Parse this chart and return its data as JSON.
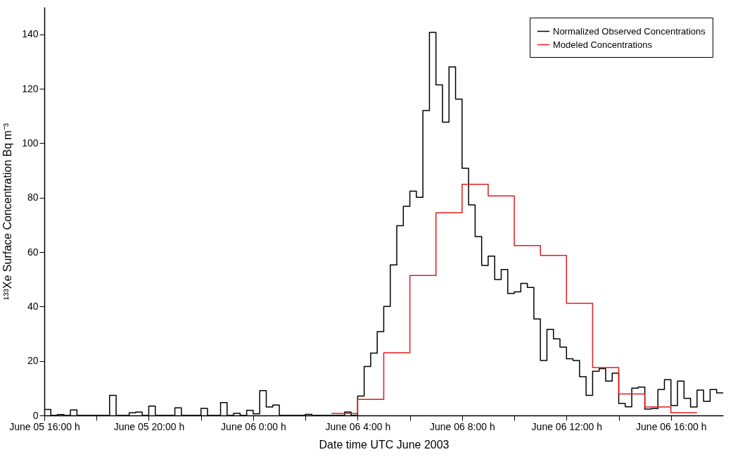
{
  "chart_data": {
    "type": "step",
    "xlabel": "Date time UTC June 2003",
    "ylabel": "¹³³Xe Surface Concentration Bq m⁻³",
    "xlim": [
      "2003-06-05T16:00",
      "2003-06-06T18:00"
    ],
    "ylim": [
      0,
      150
    ],
    "xticks": [
      {
        "value": "2003-06-05T16:00",
        "label": "June 05 16:00 h"
      },
      {
        "value": "2003-06-05T18:00",
        "label": null
      },
      {
        "value": "2003-06-05T20:00",
        "label": "June 05 20:00 h"
      },
      {
        "value": "2003-06-05T22:00",
        "label": null
      },
      {
        "value": "2003-06-06T00:00",
        "label": "June 06 0:00 h"
      },
      {
        "value": "2003-06-06T02:00",
        "label": null
      },
      {
        "value": "2003-06-06T04:00",
        "label": "June 06 4:00 h"
      },
      {
        "value": "2003-06-06T06:00",
        "label": null
      },
      {
        "value": "2003-06-06T08:00",
        "label": "June 06 8:00 h"
      },
      {
        "value": "2003-06-06T10:00",
        "label": null
      },
      {
        "value": "2003-06-06T12:00",
        "label": "June 06 12:00 h"
      },
      {
        "value": "2003-06-06T14:00",
        "label": null
      },
      {
        "value": "2003-06-06T16:00",
        "label": "June 06 16:00 h"
      }
    ],
    "yticks": [
      0,
      20,
      40,
      60,
      80,
      100,
      120,
      140
    ],
    "grid": false,
    "legend": "top right",
    "series": [
      {
        "name": "Normalized Observed Concentrations",
        "color": "#000000",
        "x": [
          "2003-06-05T16:00",
          "2003-06-05T16:15",
          "2003-06-05T16:30",
          "2003-06-05T16:45",
          "2003-06-05T17:00",
          "2003-06-05T17:15",
          "2003-06-05T17:30",
          "2003-06-05T17:45",
          "2003-06-05T18:00",
          "2003-06-05T18:15",
          "2003-06-05T18:30",
          "2003-06-05T18:45",
          "2003-06-05T19:00",
          "2003-06-05T19:15",
          "2003-06-05T19:30",
          "2003-06-05T19:45",
          "2003-06-05T20:00",
          "2003-06-05T20:15",
          "2003-06-05T20:30",
          "2003-06-05T20:45",
          "2003-06-05T21:00",
          "2003-06-05T21:15",
          "2003-06-05T21:30",
          "2003-06-05T21:45",
          "2003-06-05T22:00",
          "2003-06-05T22:15",
          "2003-06-05T22:30",
          "2003-06-05T22:45",
          "2003-06-05T23:00",
          "2003-06-05T23:15",
          "2003-06-05T23:30",
          "2003-06-05T23:45",
          "2003-06-06T00:00",
          "2003-06-06T00:15",
          "2003-06-06T00:30",
          "2003-06-06T00:45",
          "2003-06-06T01:00",
          "2003-06-06T01:15",
          "2003-06-06T01:30",
          "2003-06-06T01:45",
          "2003-06-06T02:00",
          "2003-06-06T02:15",
          "2003-06-06T02:30",
          "2003-06-06T02:45",
          "2003-06-06T03:00",
          "2003-06-06T03:15",
          "2003-06-06T03:30",
          "2003-06-06T03:45",
          "2003-06-06T04:00",
          "2003-06-06T04:15",
          "2003-06-06T04:30",
          "2003-06-06T04:45",
          "2003-06-06T05:00",
          "2003-06-06T05:15",
          "2003-06-06T05:30",
          "2003-06-06T05:45",
          "2003-06-06T06:00",
          "2003-06-06T06:15",
          "2003-06-06T06:30",
          "2003-06-06T06:45",
          "2003-06-06T07:00",
          "2003-06-06T07:15",
          "2003-06-06T07:30",
          "2003-06-06T07:45",
          "2003-06-06T08:00",
          "2003-06-06T08:15",
          "2003-06-06T08:30",
          "2003-06-06T08:45",
          "2003-06-06T09:00",
          "2003-06-06T09:15",
          "2003-06-06T09:30",
          "2003-06-06T09:45",
          "2003-06-06T10:00",
          "2003-06-06T10:15",
          "2003-06-06T10:30",
          "2003-06-06T10:45",
          "2003-06-06T11:00",
          "2003-06-06T11:15",
          "2003-06-06T11:30",
          "2003-06-06T11:45",
          "2003-06-06T12:00",
          "2003-06-06T12:15",
          "2003-06-06T12:30",
          "2003-06-06T12:45",
          "2003-06-06T13:00",
          "2003-06-06T13:15",
          "2003-06-06T13:30",
          "2003-06-06T13:45",
          "2003-06-06T14:00",
          "2003-06-06T14:15",
          "2003-06-06T14:30",
          "2003-06-06T14:45",
          "2003-06-06T15:00",
          "2003-06-06T15:15",
          "2003-06-06T15:30",
          "2003-06-06T15:45",
          "2003-06-06T16:00",
          "2003-06-06T16:15",
          "2003-06-06T16:30",
          "2003-06-06T16:45",
          "2003-06-06T17:00",
          "2003-06-06T17:15",
          "2003-06-06T17:30",
          "2003-06-06T17:45",
          "2003-06-06T18:00"
        ],
        "values": [
          2.2,
          0,
          0.3,
          0,
          2.0,
          0,
          0,
          0,
          0,
          0,
          7.4,
          0,
          0,
          1.0,
          1.2,
          0,
          3.4,
          0,
          0,
          0,
          2.8,
          0,
          0,
          0,
          2.6,
          0,
          0,
          4.7,
          0,
          0.8,
          0,
          1.9,
          0.6,
          9.1,
          3.1,
          3.8,
          0,
          0,
          0,
          0,
          0.4,
          0,
          0,
          0,
          0,
          0,
          1.2,
          0,
          7.1,
          18.0,
          22.9,
          30.8,
          40.0,
          55.3,
          69.7,
          76.8,
          82.4,
          80.1,
          112.0,
          140.7,
          121.4,
          107.7,
          128.0,
          116.2,
          90.8,
          77.3,
          65.7,
          55.1,
          58.5,
          49.9,
          53.6,
          44.8,
          45.4,
          48.5,
          47.0,
          35.4,
          20.2,
          31.6,
          28.1,
          25.1,
          20.8,
          20.2,
          14.2,
          7.4,
          16.2,
          17.2,
          12.6,
          15.5,
          4.4,
          3.2,
          10.0,
          10.4,
          2.3,
          2.5,
          9.5,
          13.1,
          3.6,
          12.6,
          6.3,
          3.1,
          9.3,
          5.2,
          9.5,
          8.3,
          8.3
        ]
      },
      {
        "name": "Modeled Concentrations",
        "color": "#e41a1c",
        "x": [
          "2003-06-06T03:00",
          "2003-06-06T04:00",
          "2003-06-06T05:00",
          "2003-06-06T06:00",
          "2003-06-06T07:00",
          "2003-06-06T08:00",
          "2003-06-06T09:00",
          "2003-06-06T10:00",
          "2003-06-06T11:00",
          "2003-06-06T12:00",
          "2003-06-06T13:00",
          "2003-06-06T14:00",
          "2003-06-06T15:00",
          "2003-06-06T16:00",
          "2003-06-06T17:00"
        ],
        "values": [
          0.7,
          5.9,
          23.0,
          51.4,
          74.4,
          84.9,
          80.6,
          62.4,
          58.8,
          41.2,
          17.6,
          7.9,
          3.1,
          1.0,
          1.0
        ]
      }
    ]
  }
}
